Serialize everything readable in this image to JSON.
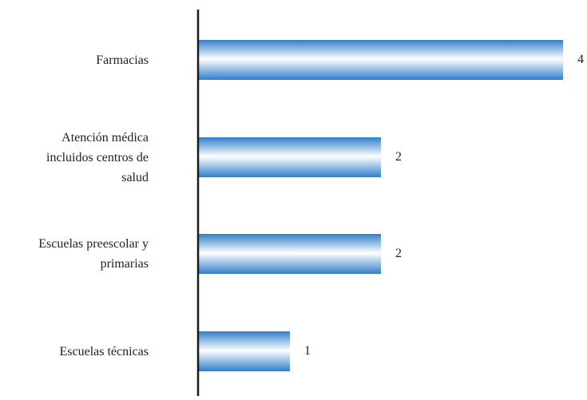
{
  "chart_data": {
    "type": "bar",
    "orientation": "horizontal",
    "categories": [
      "Farmacias",
      "Atención médica\nincluidos centros de\nsalud",
      "Escuelas preescolar y\nprimarias",
      "Escuelas técnicas"
    ],
    "values": [
      4,
      2,
      2,
      1
    ],
    "data_labels": [
      "4",
      "2",
      "2",
      "1"
    ],
    "xlim": [
      0,
      4
    ],
    "grid": false,
    "legend": "none",
    "colors": {
      "bar_dark": "#2f7fca",
      "bar_light": "#ffffff",
      "axis": "#1a1a1a",
      "text": "#222222"
    }
  }
}
